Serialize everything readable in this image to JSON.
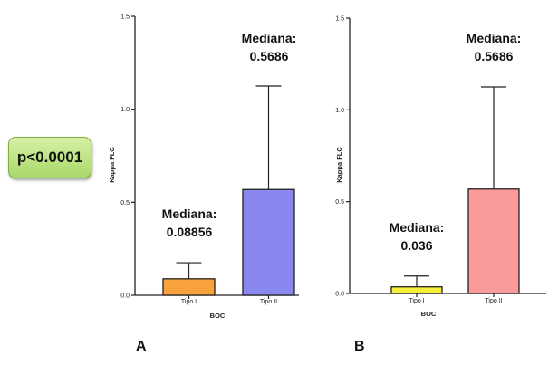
{
  "annotation": {
    "pvalue": "p<0.0001"
  },
  "panel_labels": [
    "A",
    "B"
  ],
  "chart_data": [
    {
      "type": "bar",
      "panel": "A",
      "title": "",
      "xlabel": "BOC",
      "ylabel": "Kappa FLC",
      "ylim": [
        0,
        1.5
      ],
      "yticks": [
        0.0,
        0.5,
        1.0,
        1.5
      ],
      "ytick_labels": [
        "0.0",
        "0.5",
        "1.0",
        "1.5"
      ],
      "categories": [
        "Tipo I",
        "Tipo II"
      ],
      "values": [
        0.08856,
        0.5686
      ],
      "error_upper": [
        0.175,
        1.125
      ],
      "colors": [
        "#f7a23b",
        "#8a87ee"
      ],
      "annotations": [
        {
          "line1": "Mediana:",
          "line2": "0.08856"
        },
        {
          "line1": "Mediana:",
          "line2": "0.5686"
        }
      ]
    },
    {
      "type": "bar",
      "panel": "B",
      "title": "",
      "xlabel": "BOC",
      "ylabel": "Kappa FLC",
      "ylim": [
        0,
        1.5
      ],
      "yticks": [
        0.0,
        0.5,
        1.0,
        1.5
      ],
      "ytick_labels": [
        "0.0",
        "0.5",
        "1.0",
        "1.5"
      ],
      "categories": [
        "Tipo I",
        "Tipo II"
      ],
      "values": [
        0.036,
        0.5686
      ],
      "error_upper": [
        0.095,
        1.125
      ],
      "colors": [
        "#f5ef38",
        "#fa9a9a"
      ],
      "annotations": [
        {
          "line1": "Mediana:",
          "line2": "0.036"
        },
        {
          "line1": "Mediana:",
          "line2": "0.5686"
        }
      ]
    }
  ]
}
